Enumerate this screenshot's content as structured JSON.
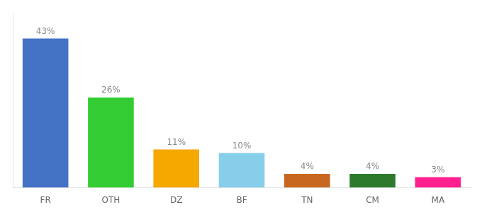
{
  "chart_data": {
    "type": "bar",
    "categories": [
      "FR",
      "OTH",
      "DZ",
      "BF",
      "TN",
      "CM",
      "MA"
    ],
    "values": [
      43,
      26,
      11,
      10,
      4,
      4,
      3
    ],
    "value_labels": [
      "43%",
      "26%",
      "11%",
      "10%",
      "4%",
      "4%",
      "3%"
    ],
    "colors": [
      "#4472c4",
      "#33cc33",
      "#f5a800",
      "#87ceeb",
      "#c86820",
      "#2d7a2d",
      "#ff1f8e"
    ],
    "ylim": [
      0,
      50
    ],
    "data_labels": true,
    "tick_labels": "x",
    "grid": false
  }
}
